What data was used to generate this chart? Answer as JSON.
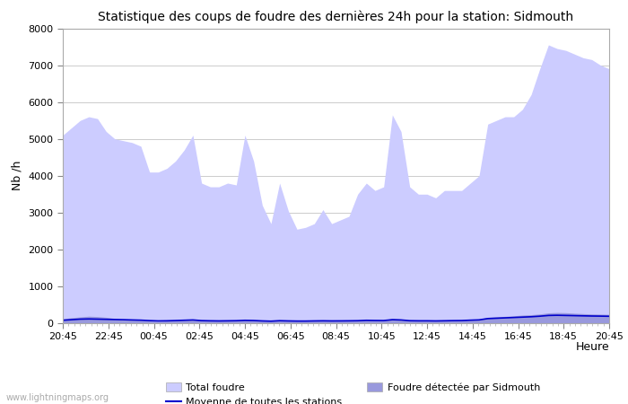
{
  "title": "Statistique des coups de foudre des dernières 24h pour la station: Sidmouth",
  "xlabel": "Heure",
  "ylabel": "Nb /h",
  "xlabels": [
    "20:45",
    "22:45",
    "00:45",
    "02:45",
    "04:45",
    "06:45",
    "08:45",
    "10:45",
    "12:45",
    "14:45",
    "16:45",
    "18:45",
    "20:45"
  ],
  "ylim": [
    0,
    8000
  ],
  "yticks": [
    0,
    1000,
    2000,
    3000,
    4000,
    5000,
    6000,
    7000,
    8000
  ],
  "total_foudre_color": "#ccccff",
  "local_foudre_color": "#9999dd",
  "moyenne_color": "#0000cc",
  "background_color": "#ffffff",
  "plot_bg_color": "#ffffff",
  "watermark": "www.lightningmaps.org",
  "total_foudre": [
    5100,
    5300,
    5500,
    5600,
    5550,
    5200,
    5000,
    4950,
    4900,
    4800,
    4100,
    4100,
    4200,
    4400,
    4700,
    5100,
    3800,
    3700,
    3700,
    3800,
    3750,
    5100,
    4400,
    3200,
    2700,
    3800,
    3050,
    2550,
    2600,
    2700,
    3080,
    2700,
    2800,
    2900,
    3500,
    3800,
    3600,
    3700,
    5650,
    5200,
    3700,
    3500,
    3500,
    3400,
    3600,
    3600,
    3600,
    3800,
    4000,
    5400,
    5500,
    5600,
    5600,
    5800,
    6200,
    6900,
    7550,
    7450,
    7400,
    7300,
    7200,
    7150,
    7000,
    6900
  ],
  "local_foudre": [
    120,
    150,
    170,
    190,
    180,
    160,
    130,
    100,
    90,
    80,
    60,
    50,
    60,
    80,
    90,
    100,
    80,
    70,
    65,
    70,
    75,
    90,
    85,
    70,
    60,
    80,
    70,
    65,
    65,
    70,
    75,
    70,
    72,
    75,
    80,
    95,
    90,
    88,
    130,
    110,
    80,
    75,
    75,
    72,
    78,
    82,
    85,
    100,
    110,
    160,
    175,
    185,
    200,
    220,
    230,
    250,
    280,
    290,
    285,
    270,
    260,
    250,
    245,
    240
  ],
  "moyenne_line": [
    80,
    95,
    110,
    115,
    110,
    105,
    100,
    95,
    88,
    82,
    70,
    62,
    65,
    72,
    80,
    88,
    70,
    65,
    62,
    65,
    68,
    78,
    73,
    62,
    55,
    68,
    62,
    58,
    58,
    62,
    65,
    62,
    63,
    65,
    68,
    78,
    74,
    72,
    95,
    88,
    68,
    65,
    65,
    62,
    66,
    70,
    72,
    82,
    90,
    125,
    135,
    145,
    155,
    165,
    175,
    190,
    210,
    215,
    210,
    205,
    200,
    195,
    192,
    188
  ],
  "n_points": 64
}
